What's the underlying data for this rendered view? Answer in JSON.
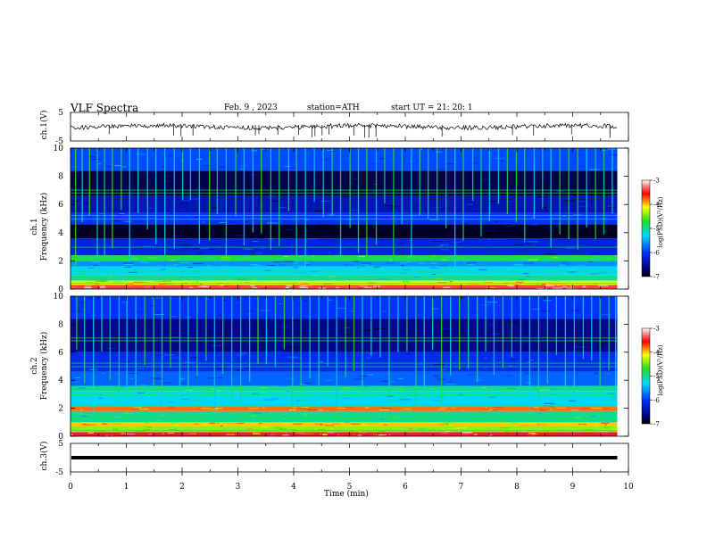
{
  "header": {
    "title": "VLF  Spectra",
    "date": "Feb. 9  , 2023",
    "station": "station=ATH",
    "start_ut": "start  UT  =   21: 20: 1"
  },
  "chart_data": [
    {
      "type": "line",
      "name": "ch1-waveform",
      "ylabel": "ch.1(V)",
      "yticks": [
        "5",
        "-5"
      ],
      "ylim": [
        -5,
        5
      ],
      "xlim": [
        0,
        10
      ],
      "trace_level_volts": 0,
      "trace_end_min": 9.8,
      "color": "#000000"
    },
    {
      "type": "heatmap",
      "name": "ch1-spectrogram",
      "ylabel": "ch.1\nFrequency  (kHz)",
      "ylabel_line1": "ch.1",
      "ylabel_line2": "Frequency  (kHz)",
      "yticks": [
        "10",
        "8",
        "6",
        "4",
        "2",
        "0"
      ],
      "ylim": [
        0,
        10
      ],
      "xlim": [
        0,
        10
      ],
      "data_end_min": 9.8,
      "colorbar": {
        "label": "log(PSD)(V²/Hz)",
        "ticks": [
          "-3",
          "-4",
          "-5",
          "-6",
          "-7"
        ],
        "range": [
          -7,
          -3
        ]
      },
      "bands_khz": [
        {
          "lo": 0.0,
          "hi": 0.3,
          "level": -3.4
        },
        {
          "lo": 0.3,
          "hi": 0.6,
          "level": -4.2
        },
        {
          "lo": 0.6,
          "hi": 1.0,
          "level": -5.0
        },
        {
          "lo": 1.0,
          "hi": 1.6,
          "level": -5.3
        },
        {
          "lo": 1.6,
          "hi": 2.0,
          "level": -5.6
        },
        {
          "lo": 2.0,
          "hi": 2.4,
          "level": -4.8
        },
        {
          "lo": 2.4,
          "hi": 3.6,
          "level": -6.2
        },
        {
          "lo": 3.6,
          "hi": 4.6,
          "level": -6.9
        },
        {
          "lo": 4.6,
          "hi": 5.4,
          "level": -6.0
        },
        {
          "lo": 5.4,
          "hi": 6.6,
          "level": -6.4
        },
        {
          "lo": 6.6,
          "hi": 8.4,
          "level": -6.8
        },
        {
          "lo": 8.4,
          "hi": 10.0,
          "level": -5.9
        }
      ],
      "sferics_min": [
        0.08,
        0.2,
        0.33,
        0.47,
        0.6,
        0.74,
        0.9,
        1.05,
        1.2,
        1.37,
        1.52,
        1.68,
        1.85,
        2.0,
        2.14,
        2.3,
        2.48,
        2.62,
        2.78,
        2.95,
        3.1,
        3.26,
        3.41,
        3.58,
        3.73,
        3.9,
        4.04,
        4.2,
        4.36,
        4.52,
        4.68,
        4.83,
        5.0,
        5.15,
        5.3,
        5.47,
        5.62,
        5.78,
        5.93,
        6.1,
        6.25,
        6.4,
        6.56,
        6.72,
        6.88,
        7.03,
        7.2,
        7.35,
        7.5,
        7.66,
        7.82,
        7.98,
        8.13,
        8.3,
        8.45,
        8.6,
        8.76,
        8.92,
        9.08,
        9.24,
        9.4,
        9.55,
        9.7
      ]
    },
    {
      "type": "heatmap",
      "name": "ch2-spectrogram",
      "ylabel": "ch.2\nFrequency  (kHz)",
      "ylabel_line1": "ch.2",
      "ylabel_line2": "Frequency  (kHz)",
      "yticks": [
        "10",
        "8",
        "6",
        "4",
        "2",
        "0"
      ],
      "ylim": [
        0,
        10
      ],
      "xlim": [
        0,
        10
      ],
      "data_end_min": 9.8,
      "colorbar": {
        "label": "log(PSD)(V²/Hz)",
        "ticks": [
          "-3",
          "-4",
          "-5",
          "-6",
          "-7"
        ],
        "range": [
          -7,
          -3
        ]
      },
      "bands_khz": [
        {
          "lo": 0.0,
          "hi": 0.3,
          "level": -3.5
        },
        {
          "lo": 0.3,
          "hi": 0.7,
          "level": -4.4
        },
        {
          "lo": 0.7,
          "hi": 1.0,
          "level": -4.0
        },
        {
          "lo": 1.0,
          "hi": 1.8,
          "level": -5.0
        },
        {
          "lo": 1.8,
          "hi": 2.1,
          "level": -3.8
        },
        {
          "lo": 2.1,
          "hi": 3.2,
          "level": -5.3
        },
        {
          "lo": 3.2,
          "hi": 3.6,
          "level": -5.0
        },
        {
          "lo": 3.6,
          "hi": 4.6,
          "level": -5.8
        },
        {
          "lo": 4.6,
          "hi": 6.0,
          "level": -6.1
        },
        {
          "lo": 6.0,
          "hi": 8.4,
          "level": -6.6
        },
        {
          "lo": 8.4,
          "hi": 10.0,
          "level": -6.0
        }
      ],
      "sferics_min": [
        0.1,
        0.24,
        0.4,
        0.55,
        0.7,
        0.86,
        1.0,
        1.16,
        1.32,
        1.48,
        1.63,
        1.78,
        1.95,
        2.1,
        2.26,
        2.42,
        2.57,
        2.72,
        2.88,
        3.04,
        3.2,
        3.35,
        3.5,
        3.66,
        3.82,
        3.97,
        4.12,
        4.28,
        4.44,
        4.6,
        4.76,
        4.92,
        5.07,
        5.22,
        5.38,
        5.54,
        5.7,
        5.86,
        6.02,
        6.18,
        6.33,
        6.48,
        6.64,
        6.8,
        6.96,
        7.12,
        7.28,
        7.43,
        7.58,
        7.74,
        7.9,
        8.06,
        8.22,
        8.38,
        8.54,
        8.7,
        8.86,
        9.02,
        9.18,
        9.33,
        9.48,
        9.64,
        9.76
      ]
    },
    {
      "type": "line",
      "name": "ch3-waveform",
      "ylabel": "ch.3(V)",
      "yticks": [
        "5",
        "-5"
      ],
      "ylim": [
        -5,
        5
      ],
      "xlim": [
        0,
        10
      ],
      "trace_level_volts": 0,
      "trace_end_min": 9.8,
      "color": "#000000",
      "xlabel": "Time  (min)",
      "xticks": [
        "0",
        "1",
        "2",
        "3",
        "4",
        "5",
        "6",
        "7",
        "8",
        "9",
        "10"
      ]
    }
  ]
}
